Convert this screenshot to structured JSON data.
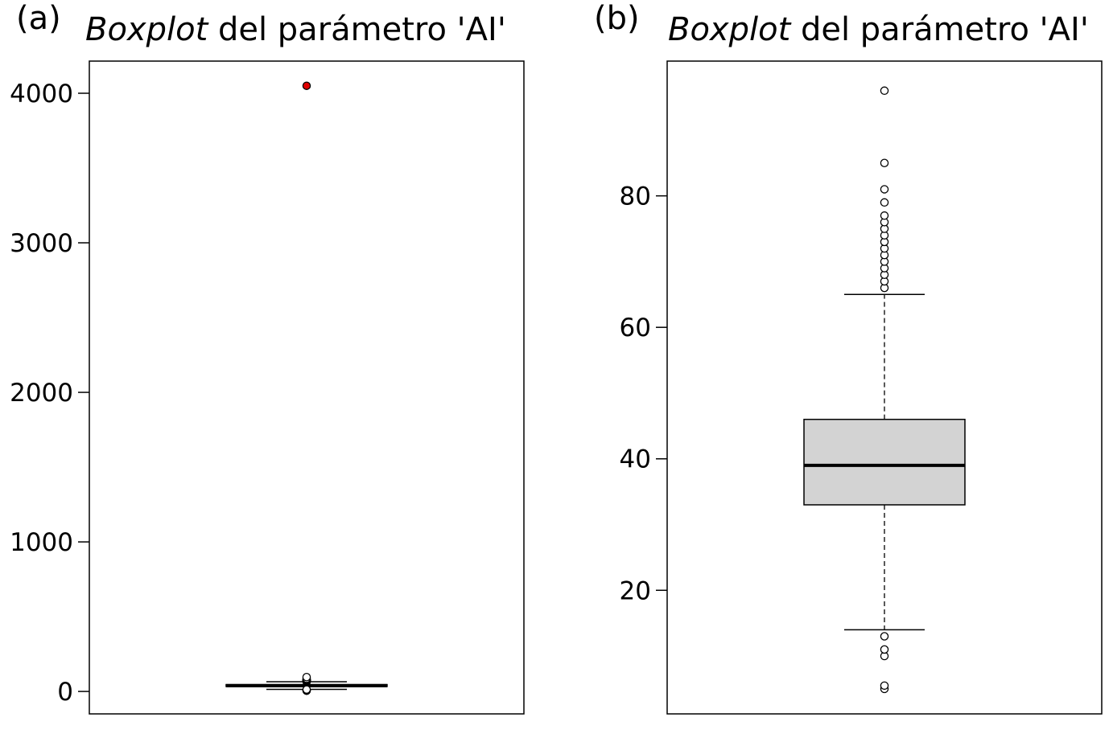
{
  "chart_data": [
    {
      "type": "boxplot",
      "panel_label": "(a)",
      "title_italic": "Boxplot",
      "title_rest": " del parámetro 'AI'",
      "ylim": [
        -150,
        4215
      ],
      "yticks": [
        0,
        1000,
        2000,
        3000,
        4000
      ],
      "ytick_labels": [
        "0",
        "1000",
        "2000",
        "3000",
        "4000"
      ],
      "box": {
        "q1": 33,
        "median": 39,
        "q3": 46,
        "whisker_low": 14,
        "whisker_high": 65
      },
      "outliers": [
        5,
        5.5,
        10,
        11,
        13,
        66,
        67,
        68,
        69,
        70,
        71,
        72,
        73,
        74,
        75,
        76,
        77,
        79,
        81,
        85,
        96
      ],
      "highlight_outliers": [
        4050
      ],
      "box_fill": "#d3d3d3",
      "highlight_color": "#e00000",
      "grid": false
    },
    {
      "type": "boxplot",
      "panel_label": "(b)",
      "title_italic": "Boxplot",
      "title_rest": " del parámetro 'AI'",
      "ylim": [
        1.2,
        100.5
      ],
      "yticks": [
        20,
        40,
        60,
        80
      ],
      "ytick_labels": [
        "20",
        "40",
        "60",
        "80"
      ],
      "box": {
        "q1": 33,
        "median": 39,
        "q3": 46,
        "whisker_low": 14,
        "whisker_high": 65
      },
      "outliers": [
        5,
        5.5,
        10,
        11,
        13,
        66,
        67,
        68,
        69,
        70,
        71,
        72,
        73,
        74,
        75,
        76,
        77,
        79,
        81,
        85,
        96
      ],
      "highlight_outliers": [],
      "box_fill": "#d3d3d3",
      "highlight_color": "#e00000",
      "grid": false
    }
  ]
}
